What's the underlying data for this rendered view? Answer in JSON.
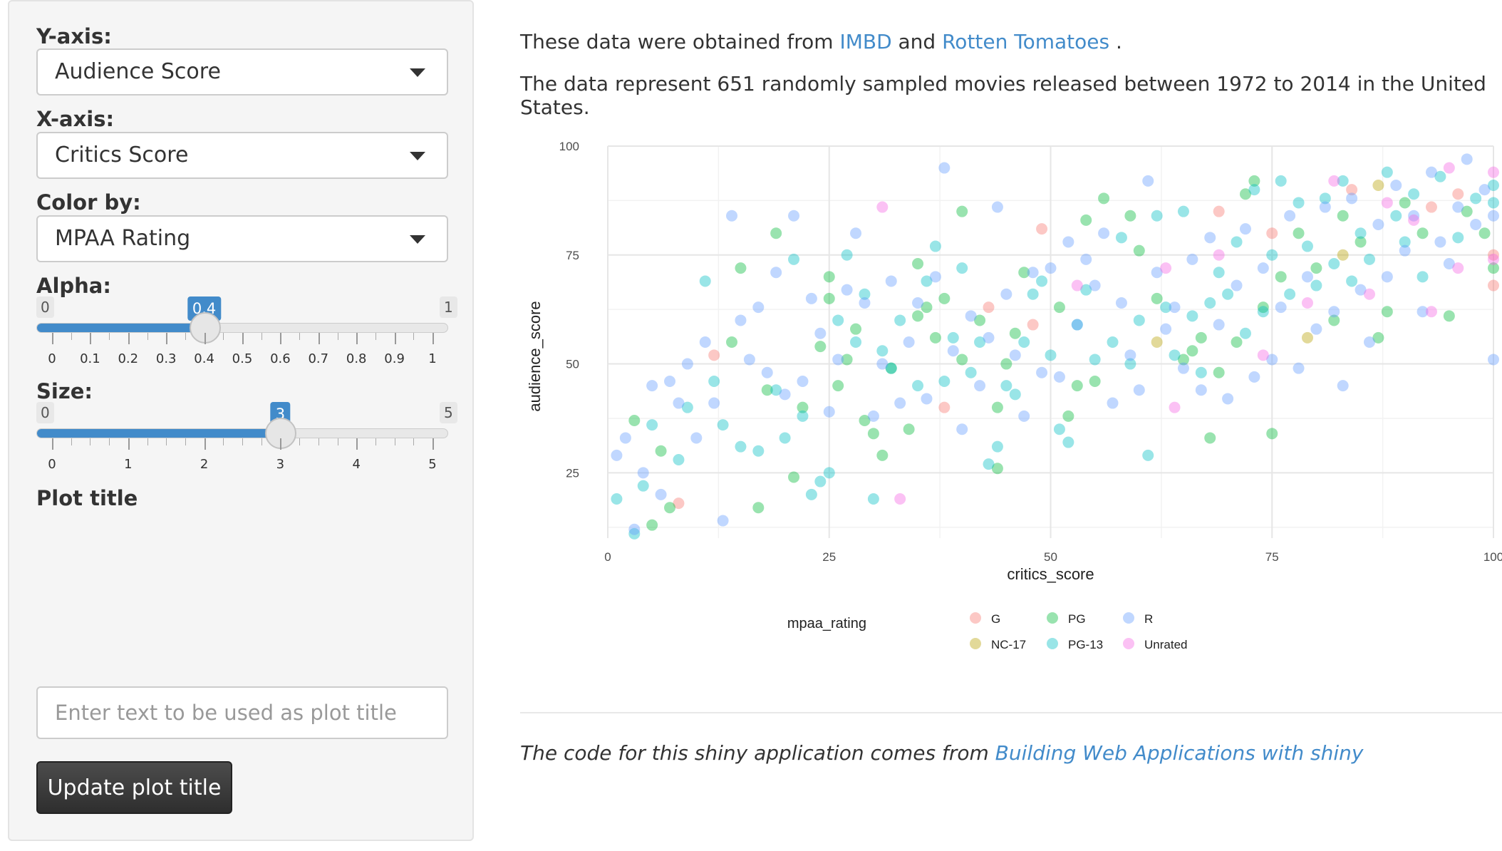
{
  "sidebar": {
    "yaxis": {
      "label": "Y-axis:",
      "value": "Audience Score"
    },
    "xaxis": {
      "label": "X-axis:",
      "value": "Critics Score"
    },
    "color": {
      "label": "Color by:",
      "value": "MPAA Rating"
    },
    "alpha": {
      "label": "Alpha:",
      "min": "0",
      "max": "1",
      "value_label": "0.4",
      "value": 0.4,
      "ticks": [
        "0",
        "0.1",
        "0.2",
        "0.3",
        "0.4",
        "0.5",
        "0.6",
        "0.7",
        "0.8",
        "0.9",
        "1"
      ]
    },
    "size": {
      "label": "Size:",
      "min": "0",
      "max": "5",
      "value_label": "3",
      "value": 3,
      "ticks": [
        "0",
        "1",
        "2",
        "3",
        "4",
        "5"
      ]
    },
    "plot_title": {
      "label": "Plot title",
      "placeholder": "Enter text to be used as plot title",
      "value": ""
    },
    "update_button": "Update plot title"
  },
  "main": {
    "line1_prefix": "These data were obtained from ",
    "link_imdb": "IMBD",
    "line1_mid": " and ",
    "link_rt": "Rotten Tomatoes",
    "line1_suffix": " .",
    "line2": "The data represent 651 randomly sampled movies released between 1972 to 2014 in the United States.",
    "footer_prefix": "The code for this shiny application comes from ",
    "footer_link": "Building Web Applications with shiny"
  },
  "colors": {
    "G": "#F8766D",
    "NC-17": "#B79F00",
    "PG": "#00BA38",
    "PG-13": "#00BFC4",
    "R": "#619CFF",
    "Unrated": "#F564E3"
  },
  "chart_data": {
    "type": "scatter",
    "title": "",
    "xlabel": "critics_score",
    "ylabel": "audience_score",
    "xlim": [
      0,
      100
    ],
    "ylim": [
      10,
      100
    ],
    "xticks": [
      0,
      25,
      50,
      75,
      100
    ],
    "yticks": [
      25,
      50,
      75,
      100
    ],
    "grid": true,
    "legend": {
      "title": "mpaa_rating",
      "placement": "bottom",
      "entries": [
        "G",
        "NC-17",
        "PG",
        "PG-13",
        "R",
        "Unrated"
      ]
    },
    "alpha": 0.4,
    "series": [
      {
        "name": "G",
        "points": [
          [
            8,
            18
          ],
          [
            12,
            52
          ],
          [
            43,
            63
          ],
          [
            48,
            59
          ],
          [
            49,
            81
          ],
          [
            38,
            40
          ],
          [
            69,
            85
          ],
          [
            75,
            80
          ],
          [
            84,
            90
          ],
          [
            96,
            89
          ],
          [
            100,
            68
          ],
          [
            100,
            75
          ],
          [
            93,
            86
          ]
        ]
      },
      {
        "name": "NC-17",
        "points": [
          [
            79,
            56
          ],
          [
            87,
            91
          ],
          [
            62,
            55
          ],
          [
            83,
            75
          ]
        ]
      },
      {
        "name": "PG",
        "points": [
          [
            3,
            37
          ],
          [
            5,
            13
          ],
          [
            7,
            17
          ],
          [
            6,
            30
          ],
          [
            15,
            72
          ],
          [
            14,
            55
          ],
          [
            19,
            80
          ],
          [
            17,
            17
          ],
          [
            18,
            44
          ],
          [
            21,
            24
          ],
          [
            22,
            40
          ],
          [
            24,
            54
          ],
          [
            25,
            65
          ],
          [
            25,
            70
          ],
          [
            26,
            45
          ],
          [
            27,
            51
          ],
          [
            28,
            58
          ],
          [
            29,
            37
          ],
          [
            30,
            34
          ],
          [
            31,
            29
          ],
          [
            32,
            49
          ],
          [
            34,
            35
          ],
          [
            35,
            61
          ],
          [
            35,
            73
          ],
          [
            36,
            63
          ],
          [
            37,
            56
          ],
          [
            38,
            65
          ],
          [
            40,
            51
          ],
          [
            40,
            85
          ],
          [
            42,
            60
          ],
          [
            44,
            40
          ],
          [
            44,
            26
          ],
          [
            45,
            50
          ],
          [
            46,
            57
          ],
          [
            47,
            71
          ],
          [
            51,
            63
          ],
          [
            52,
            38
          ],
          [
            53,
            45
          ],
          [
            54,
            83
          ],
          [
            55,
            46
          ],
          [
            56,
            88
          ],
          [
            59,
            84
          ],
          [
            60,
            76
          ],
          [
            62,
            65
          ],
          [
            65,
            51
          ],
          [
            66,
            53
          ],
          [
            67,
            56
          ],
          [
            68,
            33
          ],
          [
            69,
            48
          ],
          [
            71,
            55
          ],
          [
            72,
            89
          ],
          [
            74,
            63
          ],
          [
            75,
            34
          ],
          [
            76,
            70
          ],
          [
            78,
            80
          ],
          [
            80,
            72
          ],
          [
            82,
            60
          ],
          [
            83,
            84
          ],
          [
            85,
            78
          ],
          [
            87,
            56
          ],
          [
            88,
            62
          ],
          [
            90,
            87
          ],
          [
            92,
            80
          ],
          [
            95,
            61
          ],
          [
            97,
            85
          ],
          [
            99,
            80
          ],
          [
            100,
            72
          ],
          [
            73,
            92
          ]
        ]
      },
      {
        "name": "PG-13",
        "points": [
          [
            1,
            19
          ],
          [
            3,
            11
          ],
          [
            4,
            22
          ],
          [
            5,
            36
          ],
          [
            8,
            28
          ],
          [
            9,
            40
          ],
          [
            11,
            69
          ],
          [
            12,
            46
          ],
          [
            13,
            36
          ],
          [
            15,
            31
          ],
          [
            17,
            30
          ],
          [
            19,
            44
          ],
          [
            20,
            33
          ],
          [
            21,
            74
          ],
          [
            22,
            38
          ],
          [
            23,
            20
          ],
          [
            24,
            23
          ],
          [
            25,
            25
          ],
          [
            26,
            60
          ],
          [
            27,
            75
          ],
          [
            28,
            55
          ],
          [
            29,
            66
          ],
          [
            30,
            19
          ],
          [
            31,
            53
          ],
          [
            32,
            49
          ],
          [
            33,
            60
          ],
          [
            35,
            45
          ],
          [
            36,
            69
          ],
          [
            37,
            77
          ],
          [
            38,
            46
          ],
          [
            39,
            56
          ],
          [
            40,
            72
          ],
          [
            41,
            48
          ],
          [
            42,
            55
          ],
          [
            43,
            27
          ],
          [
            44,
            31
          ],
          [
            45,
            45
          ],
          [
            46,
            43
          ],
          [
            47,
            55
          ],
          [
            48,
            66
          ],
          [
            49,
            69
          ],
          [
            50,
            52
          ],
          [
            51,
            35
          ],
          [
            52,
            32
          ],
          [
            53,
            59
          ],
          [
            54,
            67
          ],
          [
            55,
            51
          ],
          [
            57,
            55
          ],
          [
            58,
            79
          ],
          [
            59,
            50
          ],
          [
            60,
            60
          ],
          [
            61,
            29
          ],
          [
            62,
            84
          ],
          [
            63,
            63
          ],
          [
            64,
            52
          ],
          [
            65,
            85
          ],
          [
            66,
            61
          ],
          [
            67,
            48
          ],
          [
            68,
            64
          ],
          [
            69,
            71
          ],
          [
            70,
            66
          ],
          [
            71,
            78
          ],
          [
            72,
            57
          ],
          [
            73,
            90
          ],
          [
            74,
            62
          ],
          [
            75,
            75
          ],
          [
            76,
            92
          ],
          [
            77,
            66
          ],
          [
            78,
            87
          ],
          [
            79,
            77
          ],
          [
            80,
            68
          ],
          [
            81,
            88
          ],
          [
            82,
            73
          ],
          [
            83,
            92
          ],
          [
            84,
            69
          ],
          [
            85,
            80
          ],
          [
            86,
            74
          ],
          [
            88,
            94
          ],
          [
            89,
            84
          ],
          [
            90,
            78
          ],
          [
            91,
            89
          ],
          [
            92,
            70
          ],
          [
            94,
            93
          ],
          [
            96,
            79
          ],
          [
            98,
            88
          ],
          [
            100,
            87
          ],
          [
            100,
            91
          ]
        ]
      },
      {
        "name": "R",
        "points": [
          [
            1,
            29
          ],
          [
            2,
            33
          ],
          [
            3,
            12
          ],
          [
            4,
            25
          ],
          [
            5,
            45
          ],
          [
            6,
            20
          ],
          [
            7,
            46
          ],
          [
            8,
            41
          ],
          [
            9,
            50
          ],
          [
            10,
            33
          ],
          [
            11,
            55
          ],
          [
            12,
            41
          ],
          [
            13,
            14
          ],
          [
            14,
            84
          ],
          [
            15,
            60
          ],
          [
            16,
            51
          ],
          [
            17,
            63
          ],
          [
            18,
            48
          ],
          [
            19,
            71
          ],
          [
            20,
            43
          ],
          [
            21,
            84
          ],
          [
            22,
            46
          ],
          [
            23,
            65
          ],
          [
            24,
            57
          ],
          [
            25,
            39
          ],
          [
            26,
            51
          ],
          [
            27,
            67
          ],
          [
            28,
            80
          ],
          [
            29,
            64
          ],
          [
            30,
            38
          ],
          [
            31,
            50
          ],
          [
            32,
            69
          ],
          [
            33,
            41
          ],
          [
            34,
            55
          ],
          [
            35,
            64
          ],
          [
            36,
            42
          ],
          [
            37,
            70
          ],
          [
            38,
            95
          ],
          [
            39,
            53
          ],
          [
            40,
            35
          ],
          [
            41,
            61
          ],
          [
            42,
            45
          ],
          [
            43,
            56
          ],
          [
            44,
            86
          ],
          [
            45,
            66
          ],
          [
            46,
            52
          ],
          [
            47,
            38
          ],
          [
            48,
            71
          ],
          [
            49,
            48
          ],
          [
            50,
            72
          ],
          [
            51,
            47
          ],
          [
            52,
            78
          ],
          [
            53,
            59
          ],
          [
            54,
            74
          ],
          [
            55,
            68
          ],
          [
            56,
            80
          ],
          [
            57,
            41
          ],
          [
            58,
            64
          ],
          [
            59,
            52
          ],
          [
            60,
            44
          ],
          [
            61,
            92
          ],
          [
            62,
            71
          ],
          [
            63,
            58
          ],
          [
            64,
            63
          ],
          [
            65,
            49
          ],
          [
            66,
            74
          ],
          [
            67,
            44
          ],
          [
            68,
            79
          ],
          [
            69,
            59
          ],
          [
            70,
            42
          ],
          [
            71,
            68
          ],
          [
            72,
            81
          ],
          [
            73,
            47
          ],
          [
            74,
            72
          ],
          [
            75,
            51
          ],
          [
            76,
            63
          ],
          [
            77,
            84
          ],
          [
            78,
            49
          ],
          [
            79,
            70
          ],
          [
            80,
            58
          ],
          [
            81,
            86
          ],
          [
            82,
            62
          ],
          [
            83,
            45
          ],
          [
            84,
            88
          ],
          [
            85,
            67
          ],
          [
            86,
            55
          ],
          [
            87,
            82
          ],
          [
            88,
            70
          ],
          [
            89,
            91
          ],
          [
            90,
            76
          ],
          [
            91,
            84
          ],
          [
            92,
            62
          ],
          [
            93,
            94
          ],
          [
            94,
            78
          ],
          [
            95,
            73
          ],
          [
            96,
            86
          ],
          [
            97,
            97
          ],
          [
            98,
            82
          ],
          [
            99,
            90
          ],
          [
            100,
            51
          ],
          [
            100,
            84
          ]
        ]
      },
      {
        "name": "Unrated",
        "points": [
          [
            31,
            86
          ],
          [
            33,
            19
          ],
          [
            53,
            68
          ],
          [
            63,
            72
          ],
          [
            64,
            40
          ],
          [
            69,
            75
          ],
          [
            74,
            52
          ],
          [
            79,
            64
          ],
          [
            82,
            92
          ],
          [
            86,
            66
          ],
          [
            88,
            87
          ],
          [
            91,
            83
          ],
          [
            93,
            62
          ],
          [
            95,
            95
          ],
          [
            96,
            72
          ],
          [
            100,
            94
          ],
          [
            100,
            74
          ]
        ]
      }
    ]
  }
}
